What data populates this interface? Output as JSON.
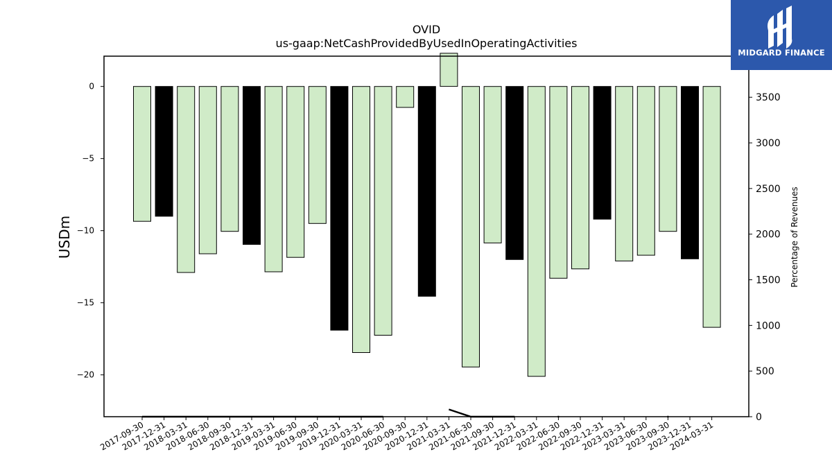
{
  "brand": {
    "name": "MIDGARD FINANCE",
    "bg_color": "#2c58ac",
    "icon": "midgard-logo-icon"
  },
  "chart_data": {
    "type": "bar",
    "title": "OVID",
    "subtitle": "us-gaap:NetCashProvidedByUsedInOperatingActivities",
    "ylabel": "USDm",
    "y2label": "Percentage of Revenues",
    "ylim": [
      -22.9,
      2.1
    ],
    "y2lim": [
      0,
      3950
    ],
    "yticks": [
      0,
      -5,
      -10,
      -15,
      -20
    ],
    "y2ticks": [
      0,
      500,
      1000,
      1500,
      2000,
      2500,
      3000,
      3500
    ],
    "categories": [
      "2017-09-30",
      "2017-12-31",
      "2018-03-31",
      "2018-06-30",
      "2018-09-30",
      "2018-12-31",
      "2019-03-31",
      "2019-06-30",
      "2019-09-30",
      "2019-12-31",
      "2020-03-31",
      "2020-06-30",
      "2020-09-30",
      "2020-12-31",
      "2021-03-31",
      "2021-06-30",
      "2021-09-30",
      "2021-12-31",
      "2022-03-31",
      "2022-06-30",
      "2022-09-30",
      "2022-12-31",
      "2023-03-31",
      "2023-06-30",
      "2023-09-30",
      "2023-12-31",
      "2024-03-31"
    ],
    "values": [
      -9.35,
      -9.0,
      -12.9,
      -11.6,
      -10.05,
      -10.95,
      -12.85,
      -11.85,
      -9.5,
      -16.9,
      -18.45,
      -17.25,
      -1.45,
      -14.55,
      2.3,
      -19.45,
      -10.85,
      -12.0,
      -20.1,
      -13.3,
      -12.65,
      -9.2,
      -12.1,
      -11.7,
      -10.05,
      -11.95,
      -16.7
    ],
    "bar_colors": [
      "#d0ebc8",
      "#000000",
      "#d0ebc8",
      "#d0ebc8",
      "#d0ebc8",
      "#000000",
      "#d0ebc8",
      "#d0ebc8",
      "#d0ebc8",
      "#000000",
      "#d0ebc8",
      "#d0ebc8",
      "#d0ebc8",
      "#000000",
      "#d0ebc8",
      "#d0ebc8",
      "#d0ebc8",
      "#000000",
      "#d0ebc8",
      "#d0ebc8",
      "#d0ebc8",
      "#000000",
      "#d0ebc8",
      "#d0ebc8",
      "#d0ebc8",
      "#000000",
      "#d0ebc8"
    ],
    "line_series": {
      "name": "Percentage of Revenues",
      "values": [
        0,
        0,
        0,
        0,
        0,
        0,
        0,
        0,
        0,
        0,
        0,
        0,
        null,
        null,
        80,
        0,
        0,
        0,
        null,
        0,
        null,
        null,
        null,
        null,
        0,
        null,
        null
      ]
    },
    "grid": false,
    "legend": "none"
  }
}
